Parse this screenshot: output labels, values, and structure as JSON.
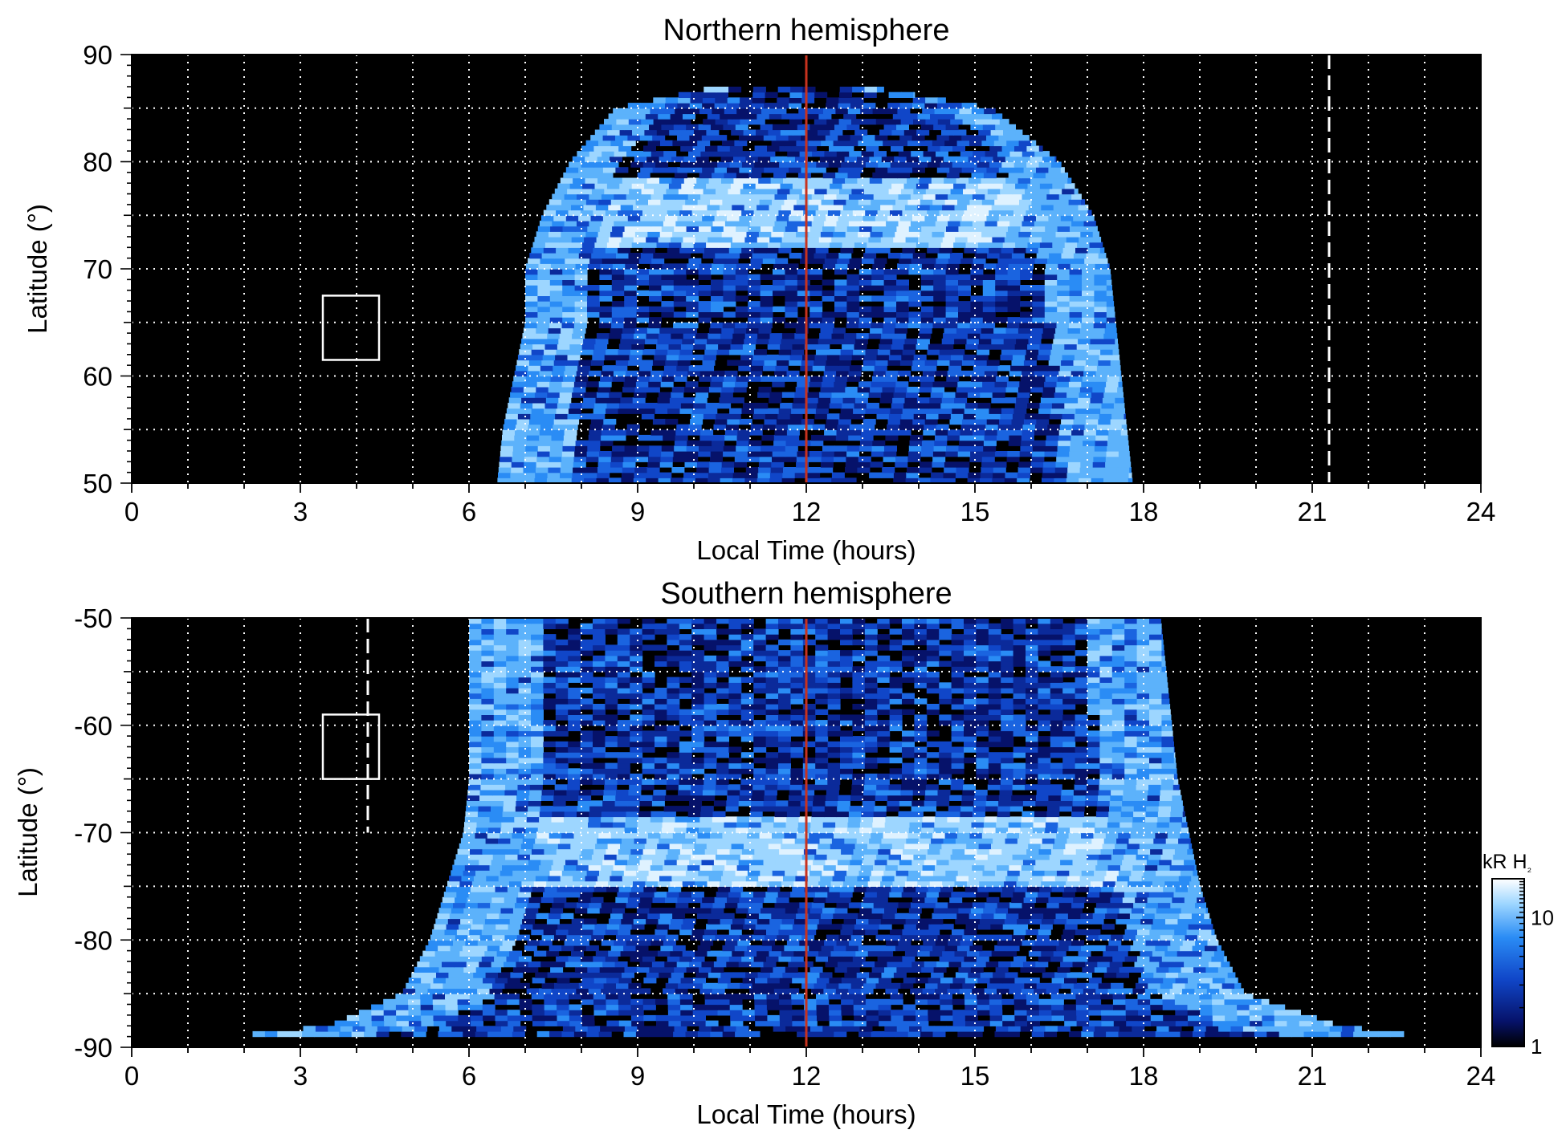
{
  "chart_data": [
    {
      "type": "heatmap",
      "title": "Northern hemisphere",
      "xlabel": "Local Time (hours)",
      "ylabel": "Latitude (°)",
      "xlim": [
        0,
        24
      ],
      "ylim": [
        50,
        90
      ],
      "xticks": [
        0,
        3,
        6,
        9,
        12,
        15,
        18,
        21,
        24
      ],
      "xtick_labels": [
        "0",
        "3",
        "6",
        "9",
        "12",
        "15",
        "18",
        "21",
        "24"
      ],
      "yticks": [
        50,
        60,
        70,
        80,
        90
      ],
      "ytick_labels": [
        "50",
        "60",
        "70",
        "80",
        "90"
      ],
      "grid": true,
      "background": "#000000",
      "emission_region": {
        "description_free": true,
        "lat_lt_extent": [
          [
            50,
            6.5,
            17.8
          ],
          [
            55,
            6.6,
            17.7
          ],
          [
            60,
            6.8,
            17.6
          ],
          [
            65,
            7.0,
            17.5
          ],
          [
            70,
            7.0,
            17.4
          ],
          [
            75,
            7.3,
            17.1
          ],
          [
            80,
            7.8,
            16.5
          ],
          [
            85,
            8.6,
            15.3
          ],
          [
            87,
            10.4,
            13.1
          ]
        ]
      },
      "auroral_ring_lat": 75,
      "noon_line": {
        "local_time": 12,
        "color": "#c8321e"
      },
      "dashed_line": {
        "local_time": 21.3,
        "lat_range": [
          50,
          90
        ],
        "color": "#ffffff"
      },
      "box": {
        "lt_range": [
          3.4,
          4.4
        ],
        "lat_range": [
          61.5,
          67.5
        ],
        "color": "#ffffff"
      }
    },
    {
      "type": "heatmap",
      "title": "Southern hemisphere",
      "xlabel": "Local Time (hours)",
      "ylabel": "Latitude (°)",
      "xlim": [
        0,
        24
      ],
      "ylim": [
        -90,
        -50
      ],
      "xticks": [
        0,
        3,
        6,
        9,
        12,
        15,
        18,
        21,
        24
      ],
      "xtick_labels": [
        "0",
        "3",
        "6",
        "9",
        "12",
        "15",
        "18",
        "21",
        "24"
      ],
      "yticks": [
        -90,
        -80,
        -70,
        -60,
        -50
      ],
      "ytick_labels": [
        "-90",
        "-80",
        "-70",
        "-60",
        "-50"
      ],
      "grid": true,
      "background": "#000000",
      "emission_region": {
        "lat_lt_extent": [
          [
            -50,
            6.0,
            18.3
          ],
          [
            -55,
            6.0,
            18.4
          ],
          [
            -60,
            6.0,
            18.5
          ],
          [
            -65,
            6.0,
            18.6
          ],
          [
            -70,
            5.9,
            18.8
          ],
          [
            -75,
            5.6,
            19.0
          ],
          [
            -80,
            5.3,
            19.3
          ],
          [
            -85,
            4.8,
            19.8
          ],
          [
            -88,
            3.5,
            21.5
          ],
          [
            -89,
            1.7,
            23.0
          ]
        ]
      },
      "auroral_ring_lat": -72,
      "noon_line": {
        "local_time": 12,
        "color": "#c8321e"
      },
      "dashed_line": {
        "local_time": 4.2,
        "lat_range": [
          -70,
          -50
        ],
        "color": "#ffffff"
      },
      "box": {
        "lt_range": [
          3.4,
          4.4
        ],
        "lat_range": [
          -65,
          -59
        ],
        "color": "#ffffff"
      }
    }
  ],
  "colorbar": {
    "label": "kR H₂",
    "label_main": "kR H",
    "label_sub": "₂",
    "scale": "log",
    "range": [
      1,
      20
    ],
    "ticks": [
      1,
      10
    ],
    "tick_labels": [
      "1",
      "10"
    ],
    "colors": [
      "#000000",
      "#06126a",
      "#1046c8",
      "#2a8cf5",
      "#9dd6ff",
      "#ffffff"
    ]
  }
}
